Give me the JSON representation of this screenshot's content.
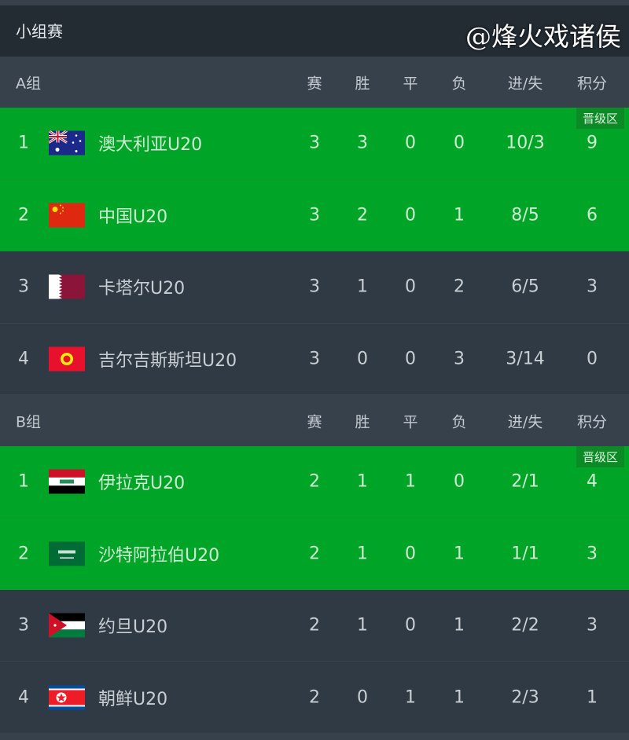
{
  "title": "小组赛",
  "columns": [
    "赛",
    "胜",
    "平",
    "负",
    "进/失",
    "积分"
  ],
  "advance_label": "晋级区",
  "groups": [
    {
      "name": "A组",
      "rows": [
        {
          "rank": "1",
          "flag": "australia-flag",
          "team": "澳大利亚U20",
          "stats": [
            "3",
            "3",
            "0",
            "0",
            "10/3",
            "9"
          ],
          "advance": true
        },
        {
          "rank": "2",
          "flag": "china-flag",
          "team": "中国U20",
          "stats": [
            "3",
            "2",
            "0",
            "1",
            "8/5",
            "6"
          ],
          "advance": true
        },
        {
          "rank": "3",
          "flag": "qatar-flag",
          "team": "卡塔尔U20",
          "stats": [
            "3",
            "1",
            "0",
            "2",
            "6/5",
            "3"
          ],
          "advance": false
        },
        {
          "rank": "4",
          "flag": "kyrgyzstan-flag",
          "team": "吉尔吉斯斯坦U20",
          "stats": [
            "3",
            "0",
            "0",
            "3",
            "3/14",
            "0"
          ],
          "advance": false
        }
      ]
    },
    {
      "name": "B组",
      "rows": [
        {
          "rank": "1",
          "flag": "iraq-flag",
          "team": "伊拉克U20",
          "stats": [
            "2",
            "1",
            "1",
            "0",
            "2/1",
            "4"
          ],
          "advance": true
        },
        {
          "rank": "2",
          "flag": "saudi-arabia-flag",
          "team": "沙特阿拉伯U20",
          "stats": [
            "2",
            "1",
            "0",
            "1",
            "1/1",
            "3"
          ],
          "advance": true
        },
        {
          "rank": "3",
          "flag": "jordan-flag",
          "team": "约旦U20",
          "stats": [
            "2",
            "1",
            "0",
            "1",
            "2/2",
            "3"
          ],
          "advance": false
        },
        {
          "rank": "4",
          "flag": "north-korea-flag",
          "team": "朝鲜U20",
          "stats": [
            "2",
            "0",
            "1",
            "1",
            "2/3",
            "1"
          ],
          "advance": false
        }
      ]
    }
  ],
  "watermark": "@烽火戏诸侯",
  "colors": {
    "advance": "#00a528",
    "header": "#36414b",
    "title_bar": "#232b33",
    "row": "#303a44"
  }
}
